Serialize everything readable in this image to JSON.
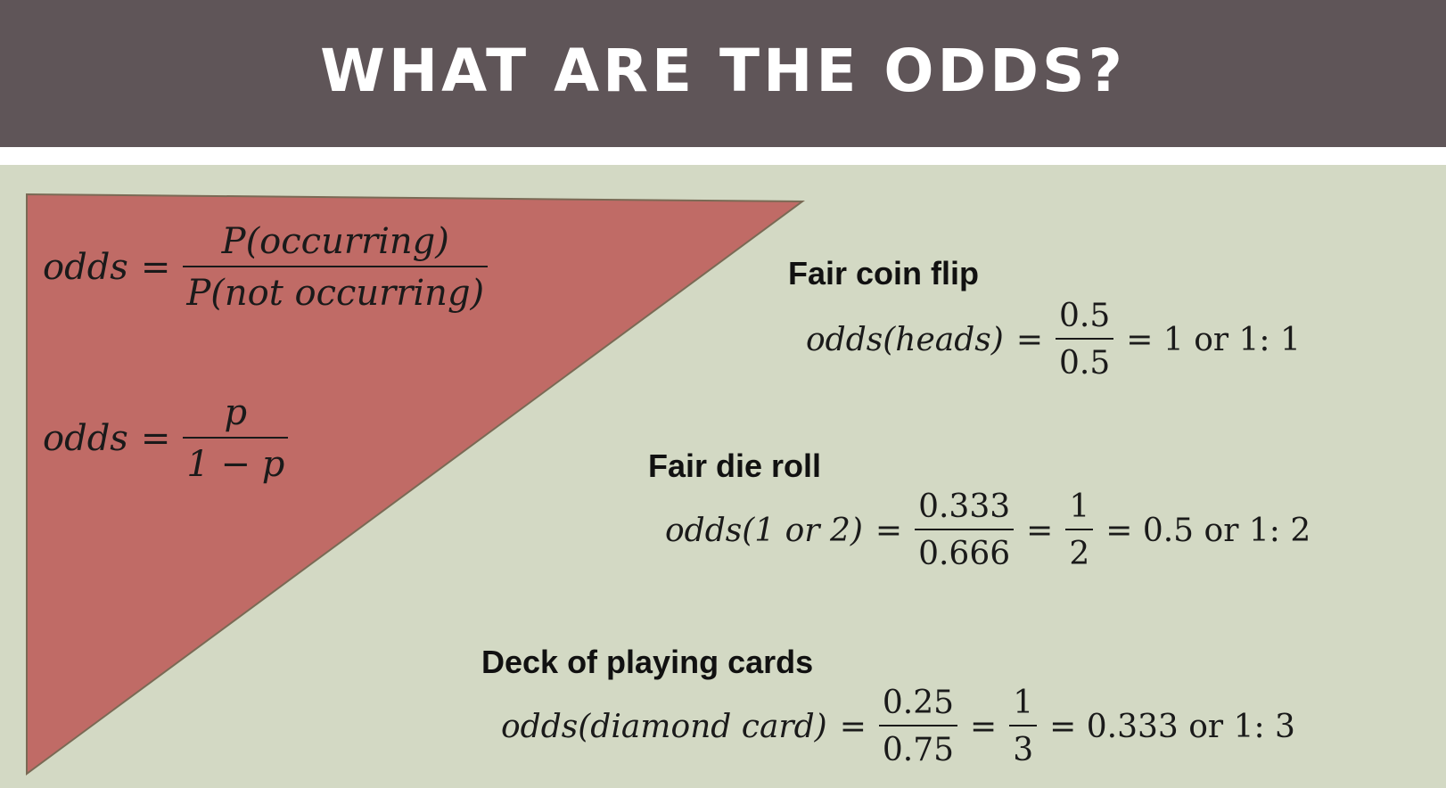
{
  "title": "WHAT ARE THE ODDS?",
  "colors": {
    "title_bar": "#5f5558",
    "background": "#d3d9c4",
    "triangle_fill": "#c06b66",
    "triangle_stroke": "#7a6a55"
  },
  "formulas": {
    "general": {
      "lhs": "odds",
      "eq": "=",
      "numerator": "P(occurring)",
      "denominator": "P(not occurring)"
    },
    "simple": {
      "lhs": "odds",
      "eq": "=",
      "numerator": "p",
      "denominator": "1 − p"
    }
  },
  "examples": {
    "coin": {
      "heading": "Fair coin flip",
      "lhs": "odds(heads)",
      "eq": "=",
      "numerator": "0.5",
      "denominator": "0.5",
      "result": "= 1 or 1: 1"
    },
    "die": {
      "heading": "Fair die roll",
      "lhs": "odds(1 or 2)",
      "eq": "=",
      "numerator": "0.333",
      "denominator": "0.666",
      "eq2": "=",
      "numerator2": "1",
      "denominator2": "2",
      "result": "= 0.5 or 1: 2"
    },
    "cards": {
      "heading": "Deck of playing cards",
      "lhs": "odds(diamond card)",
      "eq": "=",
      "numerator": "0.25",
      "denominator": "0.75",
      "eq2": "=",
      "numerator2": "1",
      "denominator2": "3",
      "result": "= 0.333 or 1: 3"
    }
  }
}
